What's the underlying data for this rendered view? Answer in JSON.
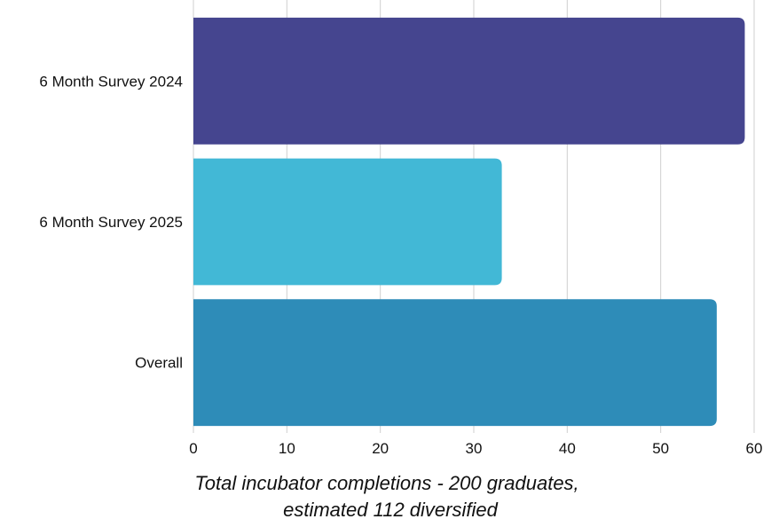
{
  "chart_data": {
    "type": "bar",
    "orientation": "horizontal",
    "categories": [
      "6 Month Survey 2024",
      "6 Month Survey 2025",
      "Overall"
    ],
    "values": [
      59,
      33,
      56
    ],
    "colors": [
      "#45458F",
      "#42B8D6",
      "#2E8CB8"
    ],
    "title": "",
    "xlabel_lines": [
      "Total incubator completions - 200 graduates,",
      "estimated 112 diversified"
    ],
    "ylabel": "",
    "xlim": [
      0,
      60
    ],
    "xticks": [
      "0",
      "10",
      "20",
      "30",
      "40",
      "50",
      "60"
    ],
    "grid": "vertical"
  }
}
